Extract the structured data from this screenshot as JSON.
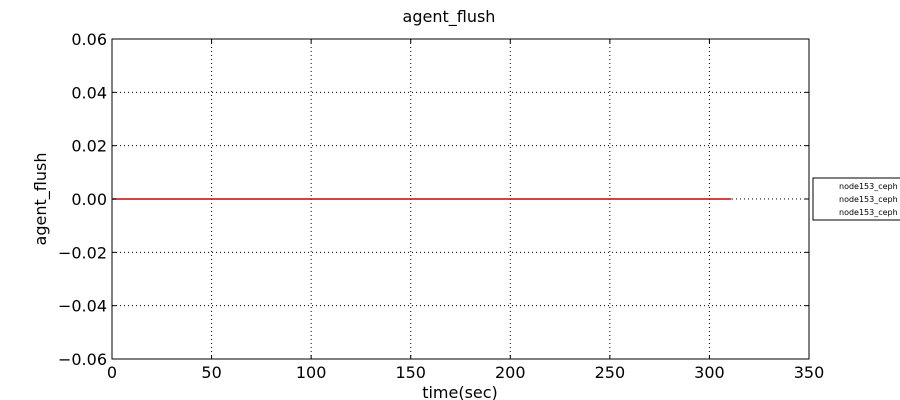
{
  "chart_data": {
    "type": "line",
    "title": "agent_flush",
    "xlabel": "time(sec)",
    "ylabel": "agent_flush",
    "xlim": [
      0,
      350
    ],
    "ylim": [
      -0.06,
      0.06
    ],
    "xticks": [
      0,
      50,
      100,
      150,
      200,
      250,
      300,
      350
    ],
    "yticks": [
      0.06,
      0.04,
      0.02,
      0.0,
      -0.02,
      -0.04,
      -0.06
    ],
    "xtick_labels": [
      "0",
      "50",
      "100",
      "150",
      "200",
      "250",
      "300",
      "350"
    ],
    "ytick_labels": [
      "0.06",
      "0.04",
      "0.02",
      "0.00",
      "−0.02",
      "−0.04",
      "−0.06"
    ],
    "grid": true,
    "legend_position": "right, outside plot area",
    "series": [
      {
        "name": "node153_ceph",
        "color": "#0000ff",
        "x": [
          0,
          311
        ],
        "y": [
          0,
          0
        ]
      },
      {
        "name": "node153_ceph",
        "color": "#008000",
        "x": [
          0,
          311
        ],
        "y": [
          0,
          0
        ]
      },
      {
        "name": "node153_ceph",
        "color": "#ff0000",
        "x": [
          0,
          311
        ],
        "y": [
          0,
          0
        ]
      }
    ]
  }
}
